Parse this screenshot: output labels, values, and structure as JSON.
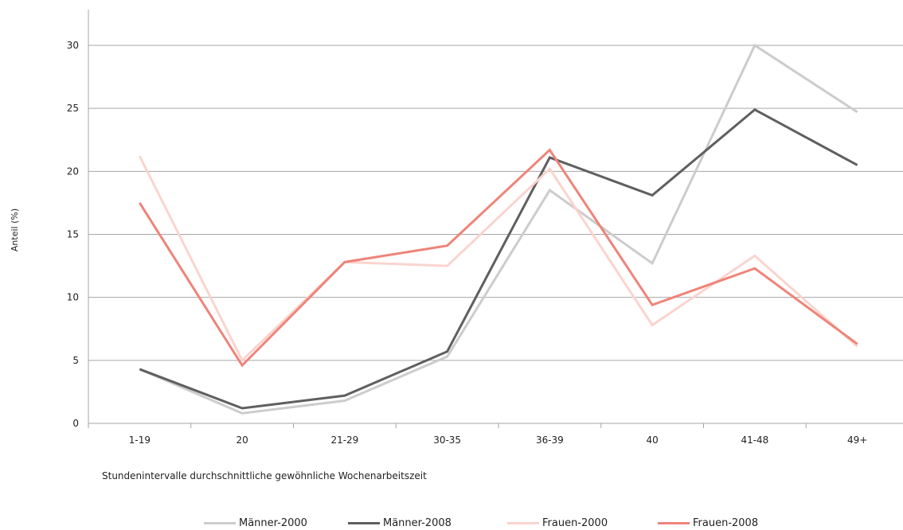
{
  "chart_data": {
    "type": "line",
    "categories": [
      "1-19",
      "20",
      "21-29",
      "30-35",
      "36-39",
      "40",
      "41-48",
      "49+"
    ],
    "ylim": [
      0,
      30
    ],
    "yticks": [
      0,
      5,
      10,
      15,
      20,
      25,
      30
    ],
    "ylabel": "Anteil (%)",
    "xlabel": "Stundenintervalle durchschnittliche gewöhnliche Wochenarbeitszeit",
    "grid": true,
    "legend": "bottom",
    "series": [
      {
        "name": "Männer-2000",
        "color": "#cccccc",
        "values": [
          4.3,
          0.8,
          1.8,
          5.3,
          18.5,
          12.7,
          30.0,
          24.7
        ]
      },
      {
        "name": "Männer-2008",
        "color": "#5f5f5f",
        "values": [
          4.3,
          1.2,
          2.2,
          5.7,
          21.1,
          18.1,
          24.9,
          20.5
        ]
      },
      {
        "name": "Frauen-2000",
        "color": "#fad4cf",
        "values": [
          21.2,
          5.0,
          12.8,
          12.5,
          20.2,
          7.8,
          13.3,
          6.1
        ]
      },
      {
        "name": "Frauen-2008",
        "color": "#ee8479",
        "values": [
          17.5,
          4.6,
          12.8,
          14.1,
          21.7,
          9.4,
          12.3,
          6.3
        ]
      }
    ]
  }
}
